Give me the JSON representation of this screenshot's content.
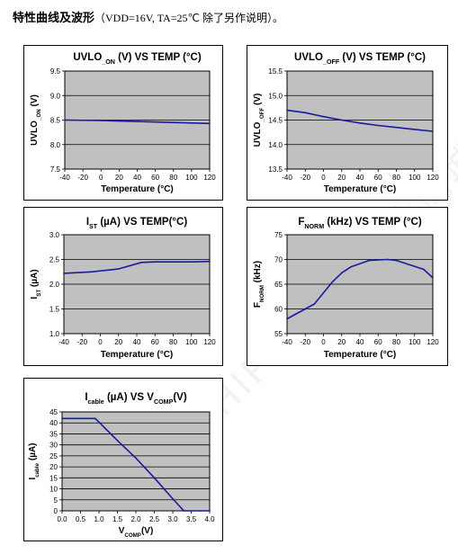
{
  "header": {
    "cn_title": "特性曲线及波形",
    "conditions": "（VDD=16V, TA=25℃  除了另作说明）。"
  },
  "watermark": "CHIPSTALL 芯片商城",
  "colors": {
    "plot_bg": "#c0c0c0",
    "line": "#1a1aa0",
    "grid": "#000000"
  },
  "chart_data": [
    {
      "id": "uvlo-on",
      "type": "line",
      "title": "UVLO_ON (V) VS TEMP (°C)",
      "title_parts": {
        "pre": "UVLO",
        "sub": "_ON",
        "post": " (V) VS TEMP (°C)"
      },
      "xlabel": "Temperature (°C)",
      "ylabel_parts": {
        "pre": "UVLO",
        "sub": "_ON",
        "post": " (V)"
      },
      "xlim": [
        -40,
        120
      ],
      "ylim": [
        7.5,
        9.5
      ],
      "xticks": [
        "-40",
        "-20",
        "0",
        "20",
        "40",
        "60",
        "80",
        "100",
        "120"
      ],
      "yticks": [
        "7.5",
        "8.0",
        "8.5",
        "9.0",
        "9.5"
      ],
      "grid": "horizontal",
      "x": [
        -40,
        0,
        40,
        80,
        120
      ],
      "y": [
        8.5,
        8.49,
        8.47,
        8.45,
        8.43
      ]
    },
    {
      "id": "uvlo-off",
      "type": "line",
      "title": "UVLO_OFF (V) VS TEMP (°C)",
      "title_parts": {
        "pre": "UVLO",
        "sub": "_OFF",
        "post": " (V) VS TEMP (°C)"
      },
      "xlabel": "Temperature (°C)",
      "ylabel_parts": {
        "pre": "UVLO",
        "sub": "_OFF",
        "post": " (V)"
      },
      "xlim": [
        -40,
        120
      ],
      "ylim": [
        13.5,
        15.5
      ],
      "xticks": [
        "-40",
        "-20",
        "0",
        "20",
        "40",
        "60",
        "80",
        "100",
        "120"
      ],
      "yticks": [
        "13.5",
        "14.0",
        "14.5",
        "15.0",
        "15.5"
      ],
      "grid": "horizontal",
      "x": [
        -40,
        -20,
        0,
        20,
        40,
        60,
        80,
        100,
        120
      ],
      "y": [
        14.7,
        14.65,
        14.57,
        14.5,
        14.44,
        14.39,
        14.35,
        14.31,
        14.27
      ]
    },
    {
      "id": "ist",
      "type": "line",
      "title": "IST (µA) VS TEMP(°C)",
      "title_parts": {
        "pre": "I",
        "sub": "ST",
        "post": " (µA) VS TEMP(°C)"
      },
      "xlabel": "Temperature (°C)",
      "ylabel_parts": {
        "pre": "I",
        "sub": "ST",
        "post": " (µA)"
      },
      "xlim": [
        -40,
        120
      ],
      "ylim": [
        1.0,
        3.0
      ],
      "xticks": [
        "-40",
        "-20",
        "0",
        "20",
        "40",
        "60",
        "80",
        "100",
        "120"
      ],
      "yticks": [
        "1.0",
        "1.5",
        "2.0",
        "2.5",
        "3.0"
      ],
      "grid": "horizontal",
      "x": [
        -40,
        -10,
        20,
        45,
        60,
        80,
        100,
        120
      ],
      "y": [
        2.22,
        2.25,
        2.31,
        2.44,
        2.45,
        2.45,
        2.45,
        2.46
      ]
    },
    {
      "id": "fnorm",
      "type": "line",
      "title": "FNORM (kHz) VS TEMP (°C)",
      "title_parts": {
        "pre": "F",
        "sub": "NORM",
        "post": " (kHz) VS TEMP (°C)"
      },
      "xlabel": "Temperature (°C)",
      "ylabel_parts": {
        "pre": "F",
        "sub": "NORM",
        "post": " (kHz)"
      },
      "xlim": [
        -40,
        120
      ],
      "ylim": [
        55,
        75
      ],
      "xticks": [
        "-40",
        "-20",
        "0",
        "20",
        "40",
        "60",
        "80",
        "100",
        "120"
      ],
      "yticks": [
        "55",
        "60",
        "65",
        "70",
        "75"
      ],
      "grid": "horizontal",
      "x": [
        -40,
        -10,
        10,
        20,
        30,
        50,
        70,
        80,
        110,
        120
      ],
      "y": [
        58.0,
        61.0,
        65.5,
        67.3,
        68.5,
        69.8,
        70.0,
        69.8,
        68.0,
        66.3
      ]
    },
    {
      "id": "icable",
      "type": "line",
      "title": "Icable (µA) VS VCOMP(V)",
      "title_parts": {
        "pre": "I",
        "sub": "cable",
        "post": " (µA) VS V",
        "sub2": "COMP",
        "post2": "(V)"
      },
      "xlabel_parts": {
        "pre": "V",
        "sub": "COMP",
        "post": "(V)"
      },
      "ylabel_parts": {
        "pre": "I",
        "sub": "cable",
        "post": " (µA)"
      },
      "xlim": [
        0,
        4
      ],
      "ylim": [
        0,
        45
      ],
      "xticks": [
        "0.0",
        "0.5",
        "1.0",
        "1.5",
        "2.0",
        "2.5",
        "3.0",
        "3.5",
        "4.0"
      ],
      "yticks": [
        "0",
        "5",
        "10",
        "15",
        "20",
        "25",
        "30",
        "35",
        "40",
        "45"
      ],
      "grid": "horizontal",
      "x": [
        0.0,
        0.9,
        1.5,
        2.0,
        2.5,
        3.0,
        3.3,
        4.0
      ],
      "y": [
        42,
        42,
        32,
        24,
        15,
        5.5,
        0,
        0
      ]
    }
  ]
}
